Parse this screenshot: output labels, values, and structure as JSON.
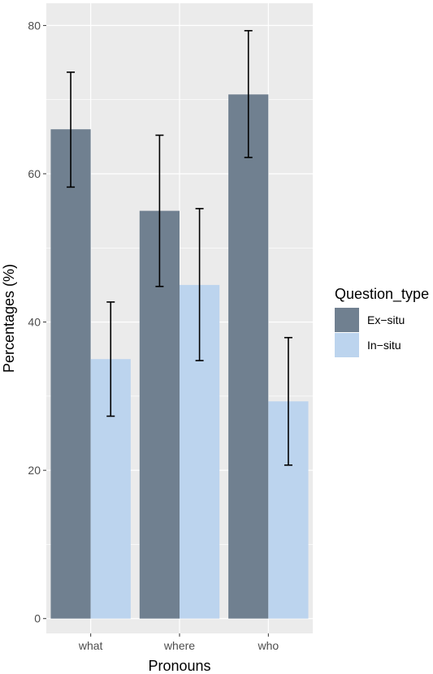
{
  "chart_data": {
    "type": "bar",
    "categories": [
      "what",
      "where",
      "who"
    ],
    "xlabel": "Pronouns",
    "ylabel": "Percentages (%)",
    "ylim": [
      -2,
      83
    ],
    "yticks": [
      0,
      20,
      40,
      60,
      80
    ],
    "grid": true,
    "legend": {
      "title": "Question_type",
      "position": "right"
    },
    "series": [
      {
        "name": "Ex−situ",
        "color": "#708090",
        "values": [
          66,
          55,
          70.7
        ],
        "error_low": [
          58.2,
          44.8,
          62.2
        ],
        "error_high": [
          73.7,
          65.2,
          79.3
        ]
      },
      {
        "name": "In−situ",
        "color": "#bcd4ee",
        "values": [
          35,
          45,
          29.3
        ],
        "error_low": [
          27.3,
          34.8,
          20.7
        ],
        "error_high": [
          42.7,
          55.3,
          37.9
        ]
      }
    ]
  }
}
